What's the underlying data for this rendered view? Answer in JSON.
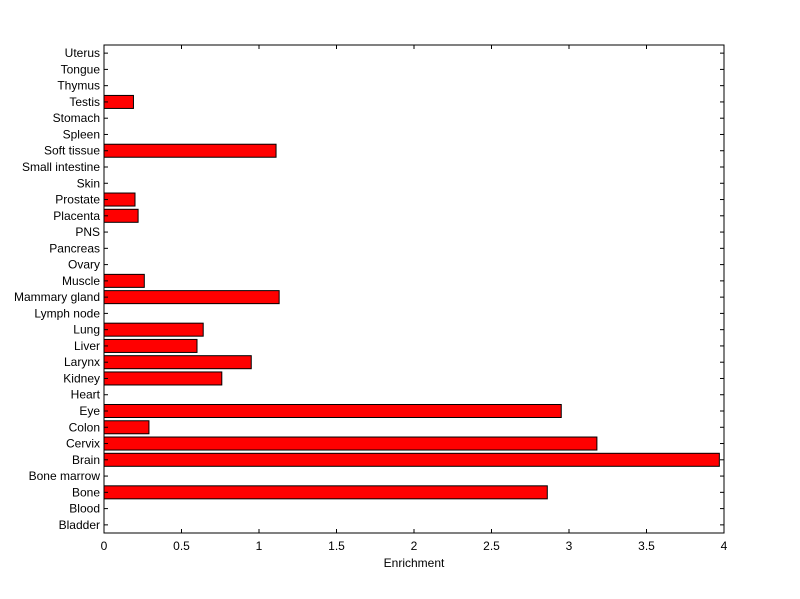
{
  "chart_data": {
    "type": "bar",
    "orientation": "horizontal",
    "title": "",
    "xlabel": "Enrichment",
    "ylabel": "",
    "xlim": [
      0,
      4
    ],
    "xticks": [
      0,
      0.5,
      1,
      1.5,
      2,
      2.5,
      3,
      3.5,
      4
    ],
    "xtick_labels": [
      "0",
      "0.5",
      "1",
      "1.5",
      "2",
      "2.5",
      "3",
      "3.5",
      "4"
    ],
    "categories": [
      "Bladder",
      "Blood",
      "Bone",
      "Bone marrow",
      "Brain",
      "Cervix",
      "Colon",
      "Eye",
      "Heart",
      "Kidney",
      "Larynx",
      "Liver",
      "Lung",
      "Lymph node",
      "Mammary gland",
      "Muscle",
      "Ovary",
      "Pancreas",
      "PNS",
      "Placenta",
      "Prostate",
      "Skin",
      "Small intestine",
      "Soft tissue",
      "Spleen",
      "Stomach",
      "Testis",
      "Thymus",
      "Tongue",
      "Uterus"
    ],
    "values": [
      0,
      0,
      2.86,
      0,
      3.97,
      3.18,
      0.29,
      2.95,
      0,
      0.76,
      0.95,
      0.6,
      0.64,
      0,
      1.13,
      0.26,
      0,
      0,
      0,
      0.22,
      0.2,
      0,
      0,
      1.11,
      0,
      0,
      0.19,
      0,
      0,
      0
    ],
    "grid": false,
    "legend": "none",
    "bar_color": "#ff0000",
    "edge_color": "#000000"
  }
}
